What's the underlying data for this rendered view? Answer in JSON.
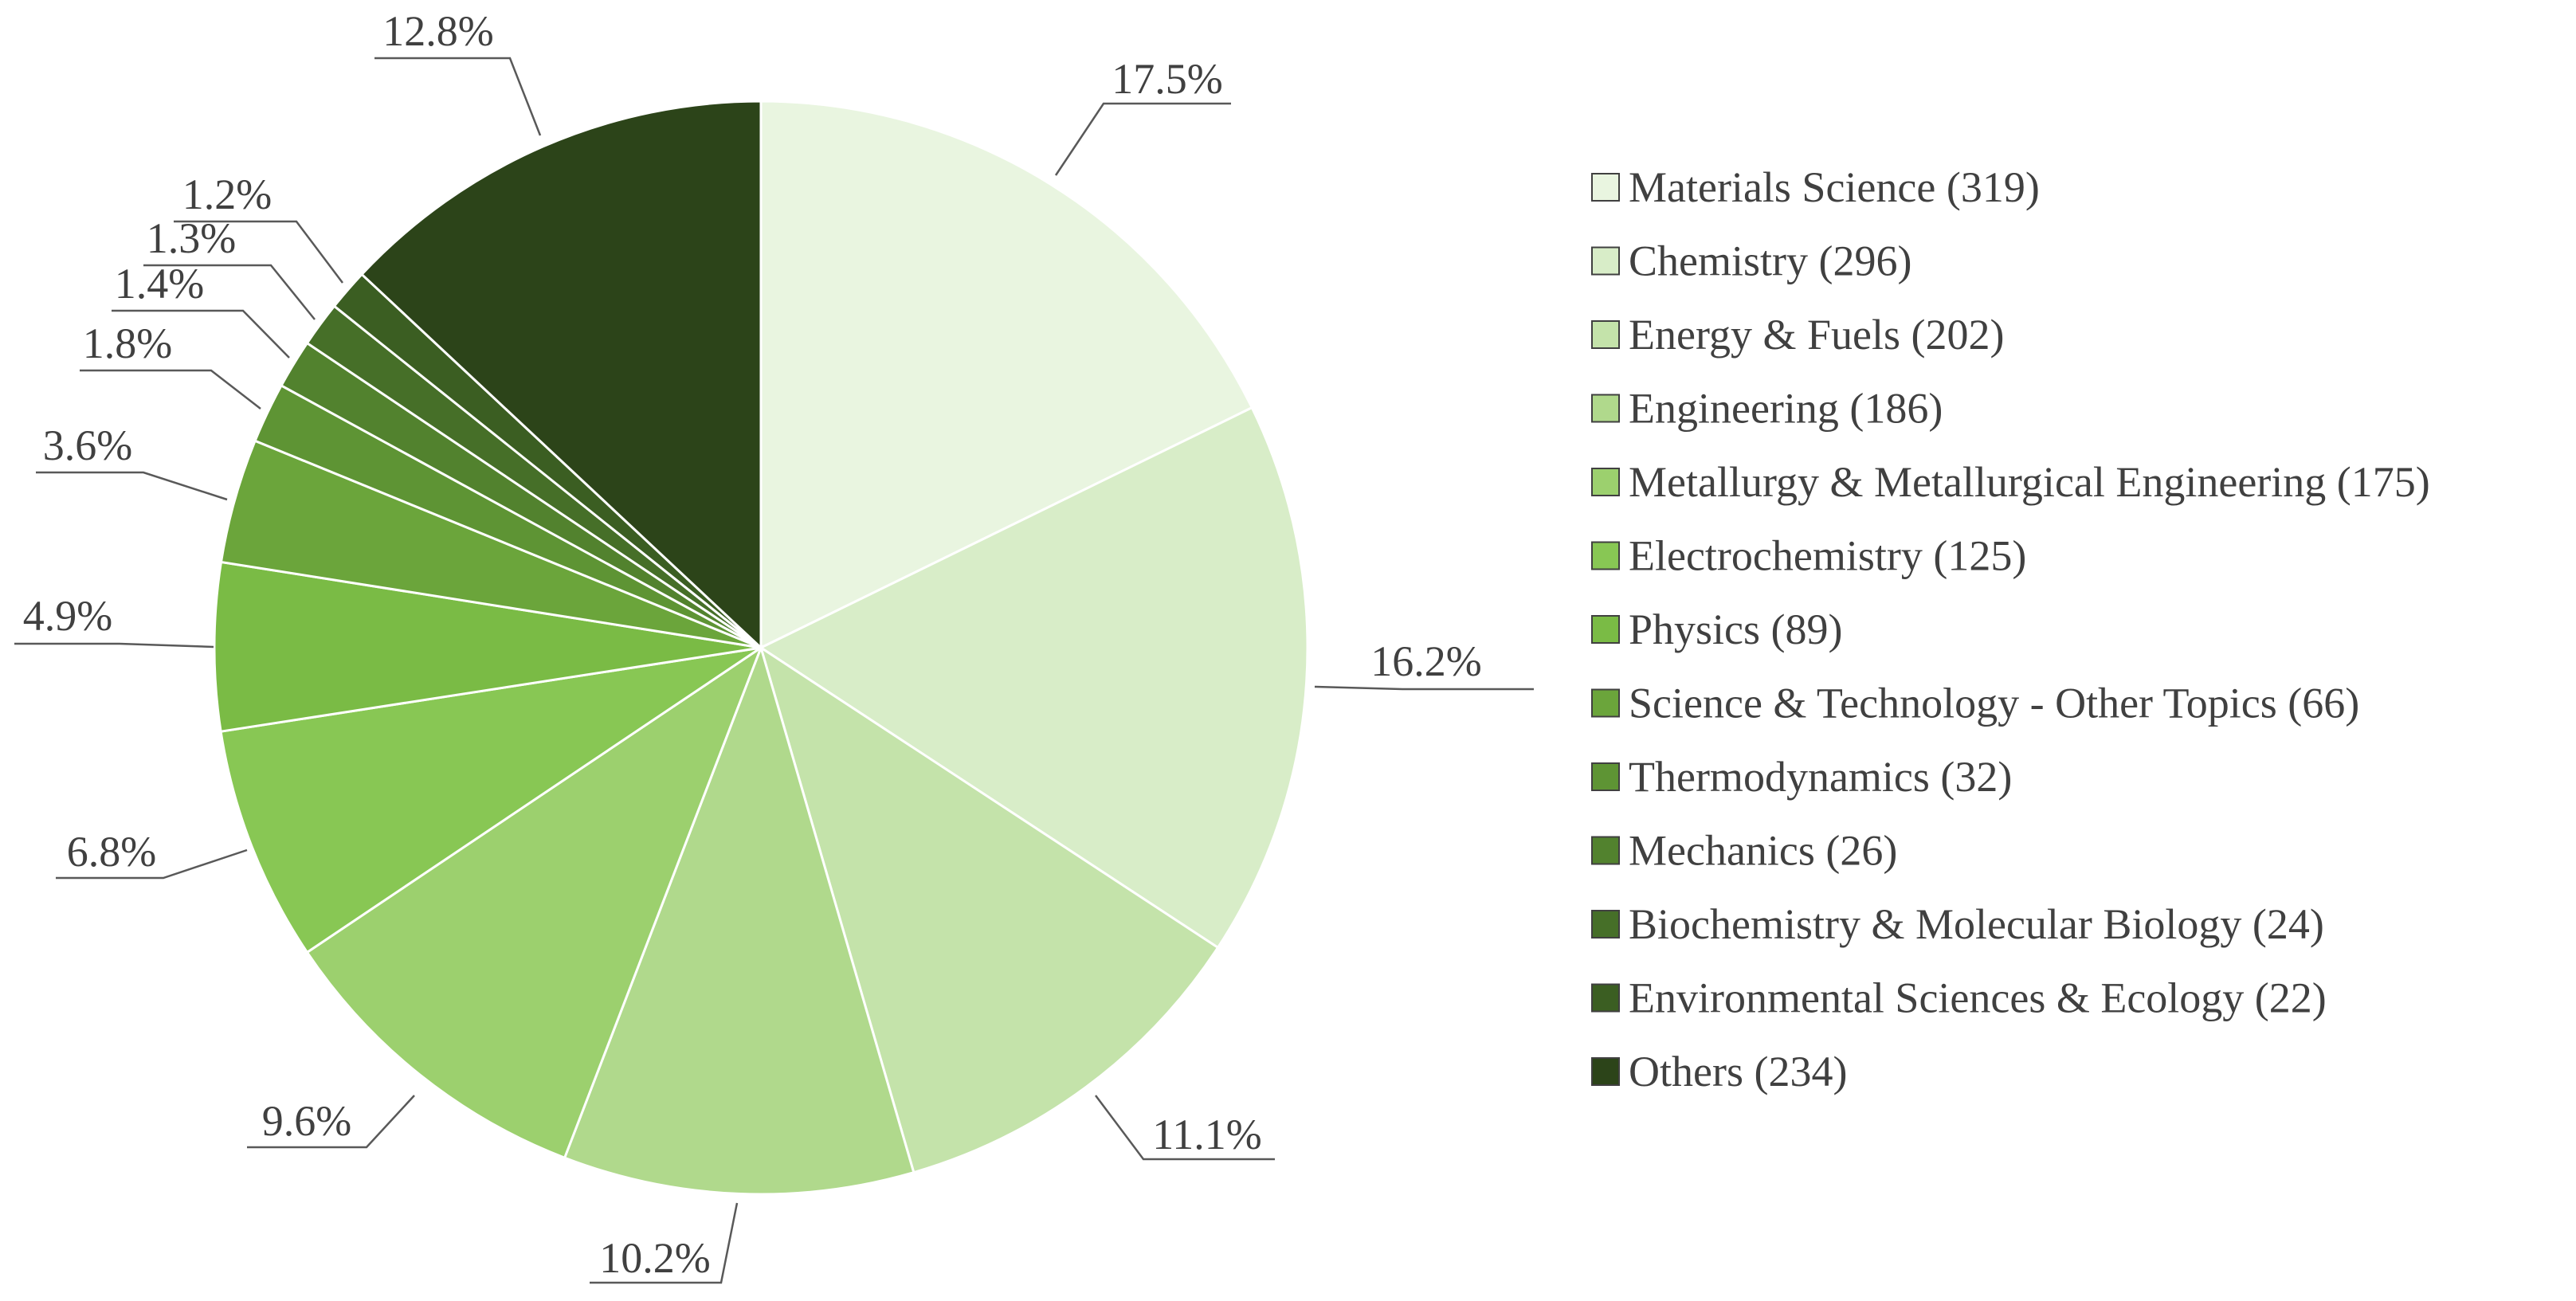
{
  "chart_data": {
    "type": "pie",
    "title": "",
    "slices": [
      {
        "label": "Materials Science",
        "count": 319,
        "percent_label": "17.5%",
        "color": "#E9F5E0"
      },
      {
        "label": "Chemistry",
        "count": 296,
        "percent_label": "16.2%",
        "color": "#D8EDC8"
      },
      {
        "label": "Energy & Fuels",
        "count": 202,
        "percent_label": "11.1%",
        "color": "#C4E3AA"
      },
      {
        "label": "Engineering",
        "count": 186,
        "percent_label": "10.2%",
        "color": "#B0D98C"
      },
      {
        "label": "Metallurgy & Metallurgical Engineering",
        "count": 175,
        "percent_label": "9.6%",
        "color": "#9CD06E"
      },
      {
        "label": "Electrochemistry",
        "count": 125,
        "percent_label": "6.8%",
        "color": "#88C754"
      },
      {
        "label": "Physics",
        "count": 89,
        "percent_label": "4.9%",
        "color": "#7ABB45"
      },
      {
        "label": "Science & Technology - Other Topics",
        "count": 66,
        "percent_label": "3.6%",
        "color": "#6BA53B"
      },
      {
        "label": "Thermodynamics",
        "count": 32,
        "percent_label": "1.8%",
        "color": "#5E9434"
      },
      {
        "label": "Mechanics",
        "count": 26,
        "percent_label": "1.4%",
        "color": "#52822E"
      },
      {
        "label": "Biochemistry & Molecular Biology",
        "count": 24,
        "percent_label": "1.3%",
        "color": "#466F28"
      },
      {
        "label": "Environmental Sciences & Ecology",
        "count": 22,
        "percent_label": "1.2%",
        "color": "#3B5E22"
      },
      {
        "label": "Others",
        "count": 234,
        "percent_label": "12.8%",
        "color": "#2C4419"
      }
    ],
    "legend_position": "right"
  },
  "legend": {
    "items": [
      "Materials Science (319)",
      "Chemistry (296)",
      "Energy & Fuels (202)",
      "Engineering (186)",
      "Metallurgy & Metallurgical Engineering (175)",
      "Electrochemistry (125)",
      "Physics (89)",
      "Science & Technology - Other Topics (66)",
      "Thermodynamics (32)",
      "Mechanics (26)",
      "Biochemistry & Molecular Biology (24)",
      "Environmental Sciences & Ecology (22)",
      "Others (234)"
    ]
  }
}
